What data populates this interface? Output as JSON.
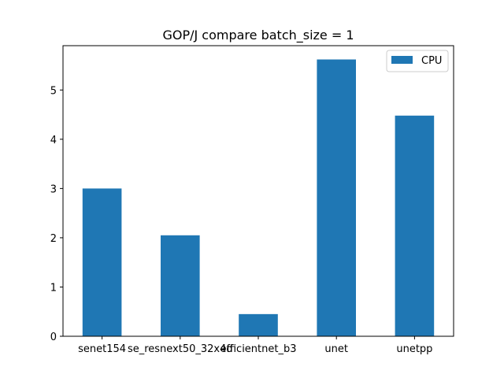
{
  "chart_data": {
    "type": "bar",
    "title": "GOP/J compare  batch_size = 1",
    "xlabel": "",
    "ylabel": "",
    "categories": [
      "senet154",
      "se_resnext50_32x4d",
      "efficientnet_b3",
      "unet",
      "unetpp"
    ],
    "series": [
      {
        "name": "CPU",
        "color": "#1f77b4",
        "values": [
          3.0,
          2.05,
          0.45,
          5.62,
          4.48
        ]
      }
    ],
    "ylim": [
      0,
      5.9
    ],
    "yticks": [
      0,
      1,
      2,
      3,
      4,
      5
    ],
    "grid": false,
    "legend": {
      "position": "top-right",
      "labels": [
        "CPU"
      ]
    }
  }
}
